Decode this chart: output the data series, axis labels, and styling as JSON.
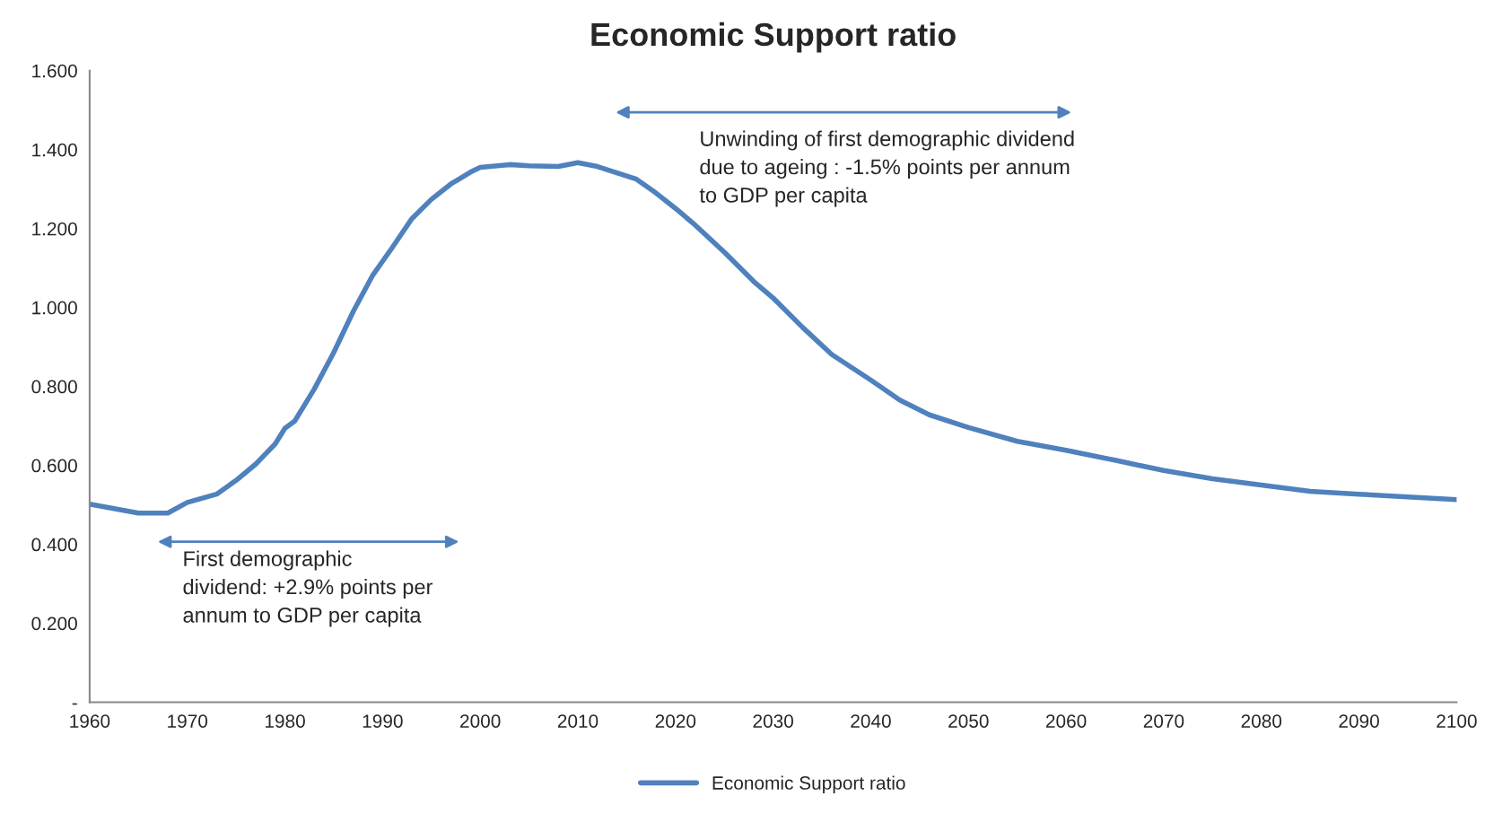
{
  "chart_data": {
    "type": "line",
    "title": "Economic Support ratio",
    "x": [
      1960,
      1963,
      1965,
      1968,
      1970,
      1973,
      1975,
      1977,
      1979,
      1980,
      1981,
      1983,
      1985,
      1987,
      1989,
      1991,
      1993,
      1995,
      1997,
      1999,
      2000,
      2003,
      2005,
      2008,
      2010,
      2012,
      2014,
      2016,
      2018,
      2020,
      2022,
      2025,
      2028,
      2030,
      2033,
      2036,
      2040,
      2043,
      2046,
      2050,
      2055,
      2060,
      2065,
      2070,
      2075,
      2080,
      2085,
      2090,
      2095,
      2100
    ],
    "series": [
      {
        "name": "Economic Support ratio",
        "color": "#4f81bd",
        "values": [
          0.502,
          0.488,
          0.479,
          0.479,
          0.506,
          0.527,
          0.562,
          0.603,
          0.654,
          0.694,
          0.712,
          0.793,
          0.886,
          0.99,
          1.082,
          1.152,
          1.225,
          1.274,
          1.313,
          1.343,
          1.355,
          1.362,
          1.359,
          1.357,
          1.367,
          1.357,
          1.341,
          1.325,
          1.29,
          1.251,
          1.209,
          1.14,
          1.066,
          1.024,
          0.95,
          0.881,
          0.816,
          0.765,
          0.728,
          0.696,
          0.661,
          0.638,
          0.613,
          0.587,
          0.566,
          0.55,
          0.534,
          0.527,
          0.52,
          0.513
        ]
      }
    ],
    "xlim": [
      1960,
      2100
    ],
    "xticks": [
      1960,
      1970,
      1980,
      1990,
      2000,
      2010,
      2020,
      2030,
      2040,
      2050,
      2060,
      2070,
      2080,
      2090,
      2100
    ],
    "ylim": [
      0,
      1.6
    ],
    "yticks": [
      {
        "value": 0,
        "label": "-"
      },
      {
        "value": 0.2,
        "label": "0.200"
      },
      {
        "value": 0.4,
        "label": "0.400"
      },
      {
        "value": 0.6,
        "label": "0.600"
      },
      {
        "value": 0.8,
        "label": "0.800"
      },
      {
        "value": 1.0,
        "label": "1.000"
      },
      {
        "value": 1.2,
        "label": "1.200"
      },
      {
        "value": 1.4,
        "label": "1.400"
      },
      {
        "value": 1.6,
        "label": "1.600"
      }
    ],
    "annotations": [
      "First demographic\ndividend: +2.9% points per\nannum to GDP per capita",
      "Unwinding of first demographic dividend\ndue to ageing : -1.5% points per annum\nto GDP per capita"
    ],
    "grid": false,
    "legend": "bottom",
    "marker": "none",
    "line_style": "solid"
  }
}
